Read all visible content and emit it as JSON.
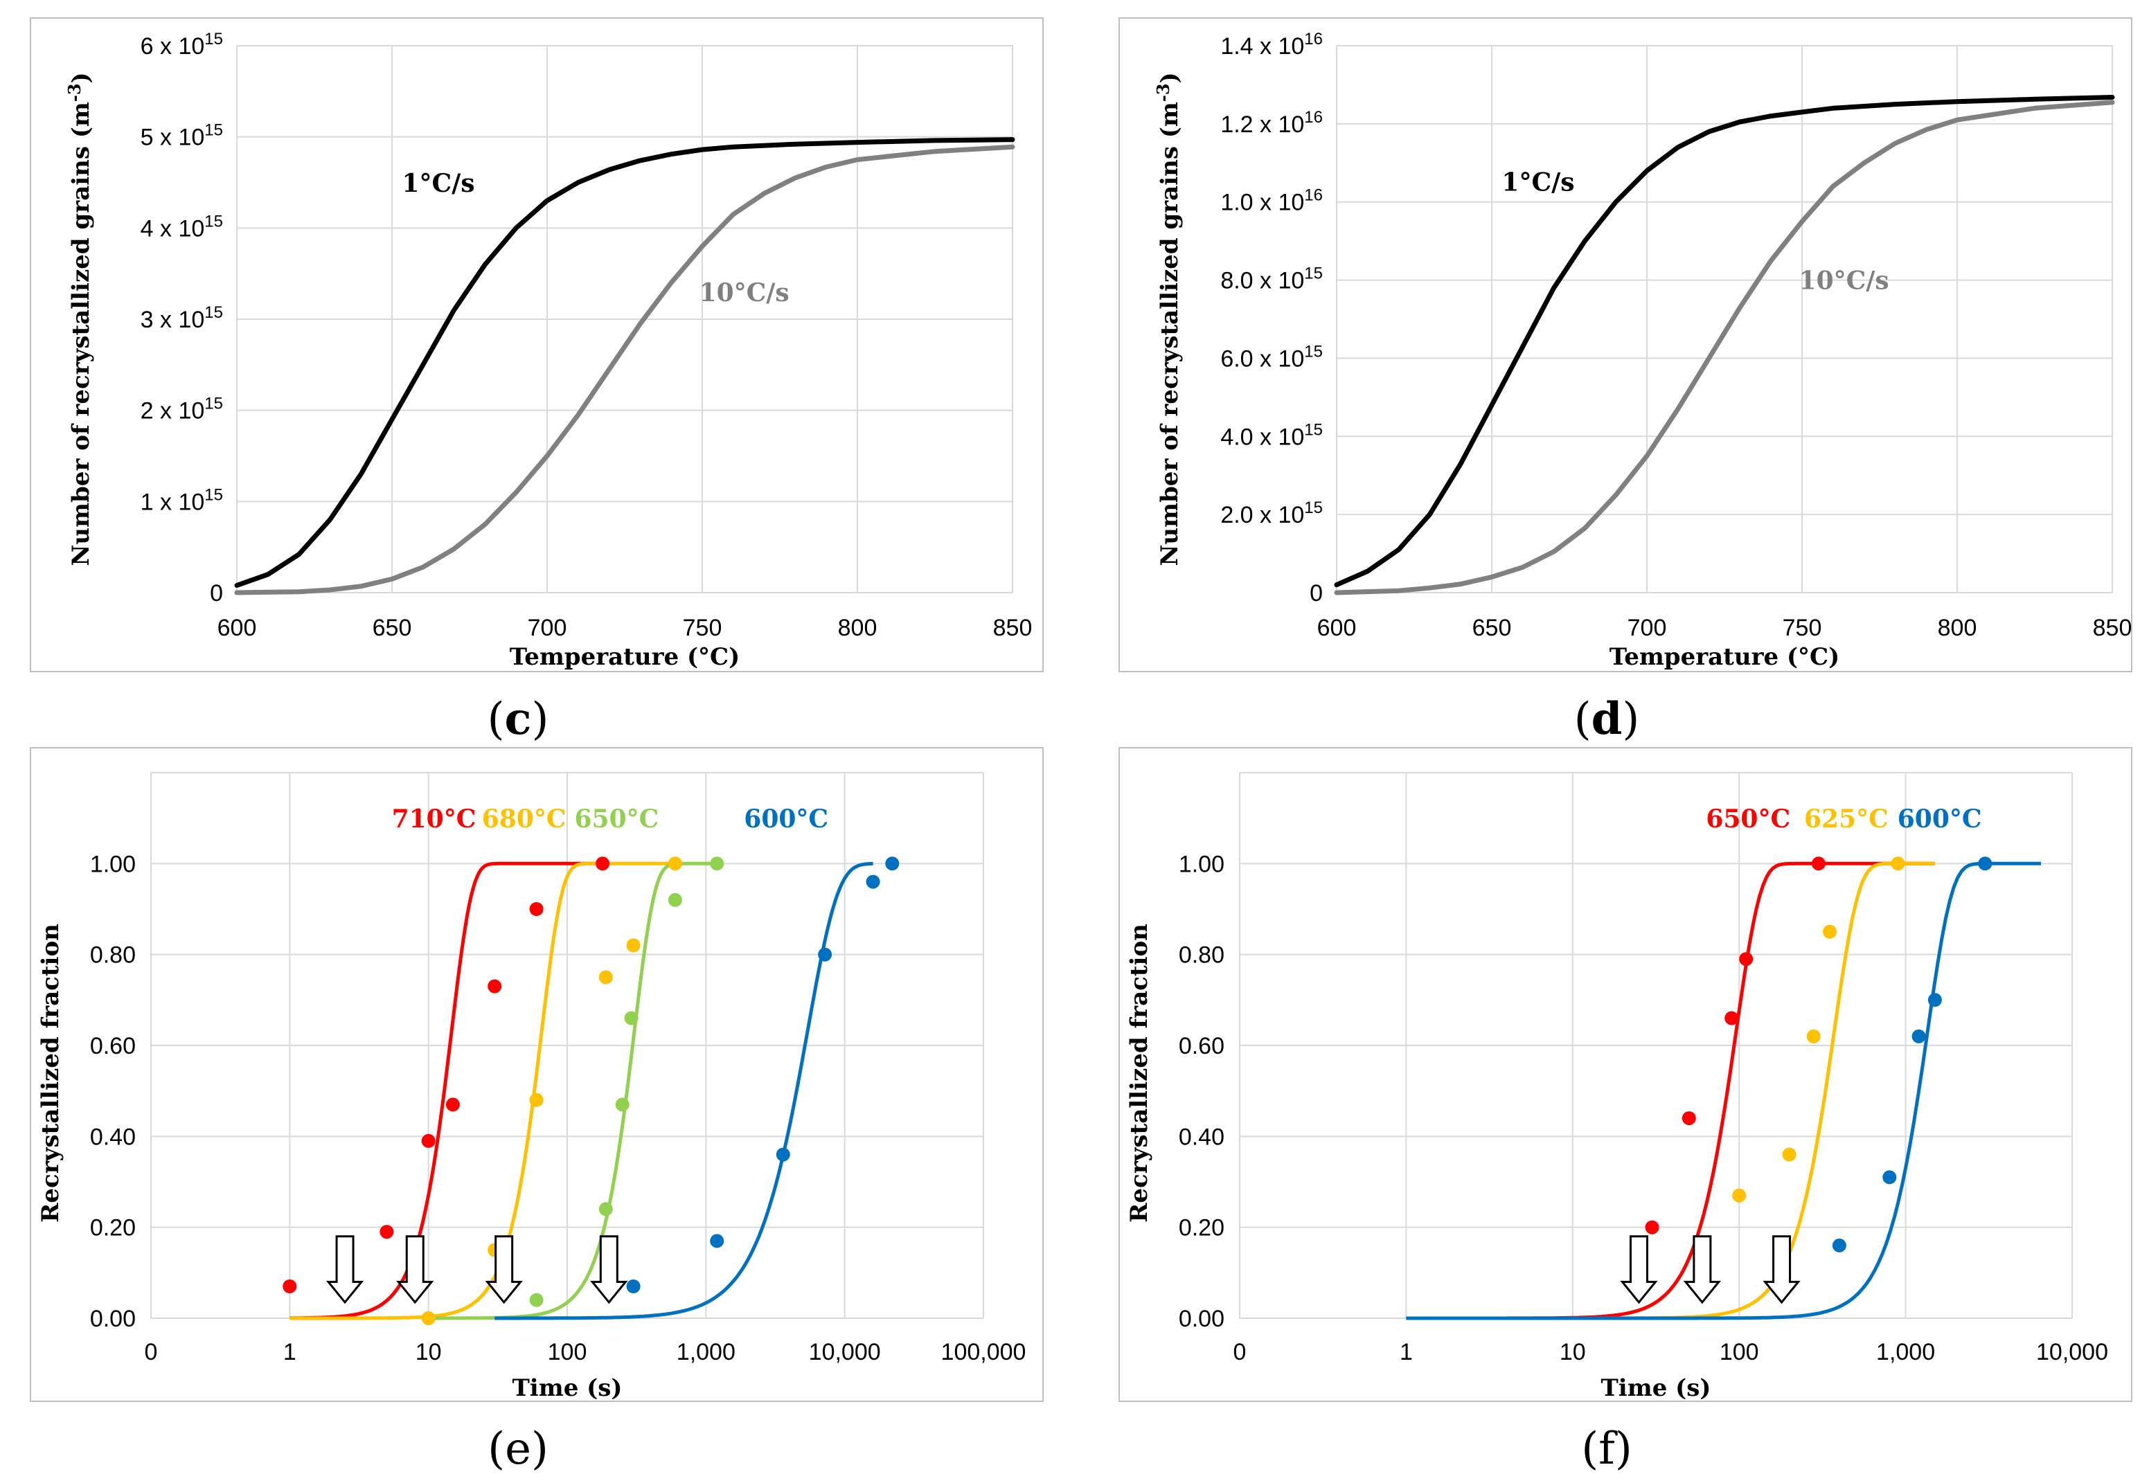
{
  "colors": {
    "black_series": "#000000",
    "gray_series": "#808080",
    "red": "#ff0000",
    "orange": "#ffc000",
    "green": "#92d050",
    "blue": "#0070c0",
    "grid": "#d9d9d9",
    "frame": "#bfbfbf"
  },
  "chart_data": [
    {
      "panel_letter": "c",
      "type": "line",
      "xlabel": "Temperature (°C)",
      "ylabel": "Number of recrystallized grains (m",
      "ylabel_sup": "-3",
      "ylabel_close": ")",
      "xlim": [
        600,
        850
      ],
      "ylim": [
        0,
        6000000000000000.0
      ],
      "x_ticks": [
        "600",
        "650",
        "700",
        "750",
        "800",
        "850"
      ],
      "y_ticks": [
        {
          "mantissa": "0",
          "exp": ""
        },
        {
          "mantissa": "1 x 10",
          "exp": "15"
        },
        {
          "mantissa": "2 x 10",
          "exp": "15"
        },
        {
          "mantissa": "3 x 10",
          "exp": "15"
        },
        {
          "mantissa": "4 x 10",
          "exp": "15"
        },
        {
          "mantissa": "5 x 10",
          "exp": "15"
        },
        {
          "mantissa": "6 x 10",
          "exp": "15"
        }
      ],
      "series": [
        {
          "name": "1°C/s",
          "color": "#000000",
          "x": [
            600,
            610,
            620,
            630,
            640,
            650,
            660,
            670,
            680,
            690,
            700,
            710,
            720,
            730,
            740,
            750,
            760,
            780,
            800,
            825,
            850
          ],
          "y": [
            80000000000000.0,
            200000000000000.0,
            420000000000000.0,
            800000000000000.0,
            1300000000000000.0,
            1900000000000000.0,
            2500000000000000.0,
            3100000000000000.0,
            3600000000000000.0,
            4000000000000000.0,
            4300000000000000.0,
            4500000000000000.0,
            4640000000000000.0,
            4740000000000000.0,
            4810000000000000.0,
            4860000000000000.0,
            4890000000000000.0,
            4920000000000000.0,
            4940000000000000.0,
            4960000000000000.0,
            4970000000000000.0
          ]
        },
        {
          "name": "10°C/s",
          "color": "#808080",
          "x": [
            600,
            620,
            630,
            640,
            650,
            660,
            670,
            680,
            690,
            700,
            710,
            720,
            730,
            740,
            750,
            760,
            770,
            780,
            790,
            800,
            825,
            850
          ],
          "y": [
            0,
            10000000000000.0,
            30000000000000.0,
            70000000000000.0,
            150000000000000.0,
            280000000000000.0,
            480000000000000.0,
            750000000000000.0,
            1100000000000000.0,
            1500000000000000.0,
            1950000000000000.0,
            2450000000000000.0,
            2950000000000000.0,
            3400000000000000.0,
            3800000000000000.0,
            4150000000000000.0,
            4380000000000000.0,
            4550000000000000.0,
            4670000000000000.0,
            4750000000000000.0,
            4840000000000000.0,
            4890000000000000.0
          ]
        }
      ]
    },
    {
      "panel_letter": "d",
      "type": "line",
      "xlabel": "Temperature (°C)",
      "ylabel": "Number of recrystallized grains (m",
      "ylabel_sup": "-3",
      "ylabel_close": ")",
      "xlim": [
        600,
        850
      ],
      "ylim": [
        0,
        1.4e+16
      ],
      "x_ticks": [
        "600",
        "650",
        "700",
        "750",
        "800",
        "850"
      ],
      "y_ticks": [
        {
          "mantissa": "0",
          "exp": ""
        },
        {
          "mantissa": "2.0 x 10",
          "exp": "15"
        },
        {
          "mantissa": "4.0 x 10",
          "exp": "15"
        },
        {
          "mantissa": "6.0 x 10",
          "exp": "15"
        },
        {
          "mantissa": "8.0 x 10",
          "exp": "15"
        },
        {
          "mantissa": "1.0 x 10",
          "exp": "16"
        },
        {
          "mantissa": "1.2 x 10",
          "exp": "16"
        },
        {
          "mantissa": "1.4 x 10",
          "exp": "16"
        }
      ],
      "series": [
        {
          "name": "1°C/s",
          "color": "#000000",
          "x": [
            600,
            610,
            620,
            630,
            640,
            650,
            660,
            670,
            680,
            690,
            700,
            710,
            720,
            730,
            740,
            750,
            760,
            780,
            800,
            825,
            850
          ],
          "y": [
            200000000000000.0,
            550000000000000.0,
            1100000000000000.0,
            2000000000000000.0,
            3300000000000000.0,
            4800000000000000.0,
            6300000000000000.0,
            7800000000000000.0,
            9000000000000000.0,
            1e+16,
            1.08e+16,
            1.14e+16,
            1.18e+16,
            1.205e+16,
            1.22e+16,
            1.23e+16,
            1.24e+16,
            1.25e+16,
            1.257e+16,
            1.263e+16,
            1.268e+16
          ]
        },
        {
          "name": "10°C/s",
          "color": "#808080",
          "x": [
            600,
            620,
            630,
            640,
            650,
            660,
            670,
            680,
            690,
            700,
            710,
            720,
            730,
            740,
            750,
            760,
            770,
            780,
            790,
            800,
            825,
            850
          ],
          "y": [
            0,
            50000000000000.0,
            120000000000000.0,
            220000000000000.0,
            400000000000000.0,
            650000000000000.0,
            1050000000000000.0,
            1650000000000000.0,
            2500000000000000.0,
            3500000000000000.0,
            4700000000000000.0,
            6000000000000000.0,
            7300000000000000.0,
            8500000000000000.0,
            9500000000000000.0,
            1.04e+16,
            1.1e+16,
            1.15e+16,
            1.185e+16,
            1.21e+16,
            1.24e+16,
            1.255e+16
          ]
        }
      ]
    },
    {
      "panel_letter": "e",
      "type": "scatter",
      "xlabel": "Time (s)",
      "ylabel": "Recrystallized fraction",
      "x_scale": "log",
      "x_ticks": [
        "0",
        "1",
        "10",
        "100",
        "1,000",
        "10,000",
        "100,000"
      ],
      "y_ticks": [
        "0.00",
        "0.20",
        "0.40",
        "0.60",
        "0.80",
        "1.00"
      ],
      "ylim": [
        0,
        1.2
      ],
      "series": [
        {
          "name": "710°C",
          "color": "#ff0000",
          "t50": 13,
          "n": 3.0,
          "t_start": 1,
          "t_end": 200,
          "points_x": [
            1,
            5,
            10,
            15,
            30,
            60,
            180
          ],
          "points_y": [
            0.07,
            0.19,
            0.39,
            0.47,
            0.73,
            0.9,
            1.0
          ]
        },
        {
          "name": "680°C",
          "color": "#ffc000",
          "t50": 58,
          "n": 3.0,
          "t_start": 1,
          "t_end": 700,
          "points_x": [
            10,
            30,
            60,
            190,
            300,
            600
          ],
          "points_y": [
            0.0,
            0.15,
            0.48,
            0.75,
            0.82,
            1.0
          ]
        },
        {
          "name": "650°C",
          "color": "#92d050",
          "t50": 270,
          "n": 3.0,
          "t_start": 10,
          "t_end": 1200,
          "points_x": [
            60,
            190,
            250,
            290,
            600,
            1200
          ],
          "points_y": [
            0.04,
            0.24,
            0.47,
            0.66,
            0.92,
            1.0
          ]
        },
        {
          "name": "600°C",
          "color": "#0070c0",
          "t50": 4500,
          "n": 2.0,
          "t_start": 30,
          "t_end": 16000,
          "points_x": [
            300,
            1200,
            3600,
            7200,
            16000,
            22000
          ],
          "points_y": [
            0.07,
            0.17,
            0.36,
            0.8,
            0.96,
            1.0
          ]
        }
      ],
      "arrows_x": [
        2.5,
        8,
        35,
        200
      ]
    },
    {
      "panel_letter": "f",
      "type": "scatter",
      "xlabel": "Time (s)",
      "ylabel": "Recrystallized fraction",
      "x_scale": "log",
      "x_ticks": [
        "0",
        "1",
        "10",
        "100",
        "1,000",
        "10,000"
      ],
      "y_ticks": [
        "0.00",
        "0.20",
        "0.40",
        "0.60",
        "0.80",
        "1.00"
      ],
      "ylim": [
        0,
        1.2
      ],
      "series": [
        {
          "name": "650°C",
          "color": "#ff0000",
          "t50": 85,
          "n": 3.0,
          "t_start": 1,
          "t_end": 1500,
          "points_x": [
            30,
            50,
            90,
            110,
            300
          ],
          "points_y": [
            0.2,
            0.44,
            0.66,
            0.79,
            1.0
          ]
        },
        {
          "name": "625°C",
          "color": "#ffc000",
          "t50": 330,
          "n": 3.0,
          "t_start": 1,
          "t_end": 1500,
          "points_x": [
            100,
            200,
            280,
            350,
            900
          ],
          "points_y": [
            0.27,
            0.36,
            0.62,
            0.85,
            1.0
          ]
        },
        {
          "name": "600°C",
          "color": "#0070c0",
          "t50": 1200,
          "n": 3.0,
          "t_start": 1,
          "t_end": 6500,
          "points_x": [
            400,
            800,
            1200,
            1500,
            3000
          ],
          "points_y": [
            0.16,
            0.31,
            0.62,
            0.7,
            1.0
          ]
        }
      ],
      "arrows_x": [
        25,
        60,
        180
      ]
    }
  ]
}
